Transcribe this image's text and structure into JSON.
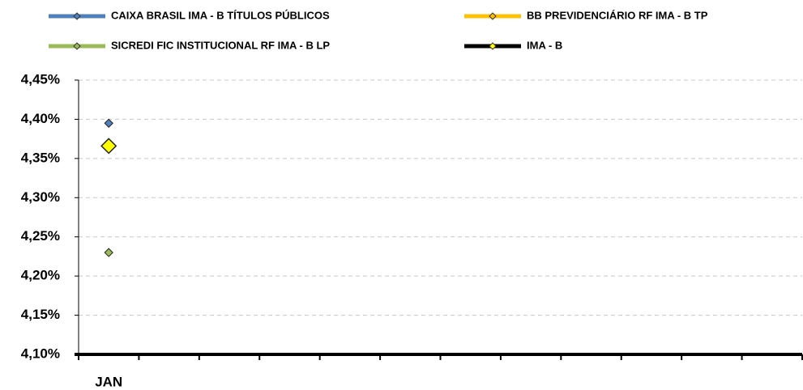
{
  "chart_data": {
    "type": "line",
    "categories": [
      "JAN",
      null,
      null,
      null,
      null,
      null,
      null,
      null,
      null,
      null,
      null,
      null
    ],
    "series": [
      {
        "name": "CAIXA BRASIL IMA - B TÍTULOS PÚBLICOS",
        "color": "#4f81bd",
        "marker_color": "#4f81bd",
        "values": [
          4.395,
          null,
          null,
          null,
          null,
          null,
          null,
          null,
          null,
          null,
          null,
          null
        ]
      },
      {
        "name": "BB PREVIDENCIÁRIO RF IMA - B TP",
        "color": "#ffc000",
        "marker_color": "#ffc000",
        "values": [
          4.366,
          null,
          null,
          null,
          null,
          null,
          null,
          null,
          null,
          null,
          null,
          null
        ]
      },
      {
        "name": "SICREDI FIC INSTITUCIONAL RF IMA - B LP",
        "color": "#9bbb59",
        "marker_color": "#9bbb59",
        "values": [
          4.23,
          null,
          null,
          null,
          null,
          null,
          null,
          null,
          null,
          null,
          null,
          null
        ]
      },
      {
        "name": "IMA - B",
        "color": "#000000",
        "marker_color": "#ffff00",
        "values": [
          4.366,
          null,
          null,
          null,
          null,
          null,
          null,
          null,
          null,
          null,
          null,
          null
        ]
      }
    ],
    "ylim": [
      4.1,
      4.45
    ],
    "yticks": [
      {
        "value": 4.1,
        "label": "4,10%"
      },
      {
        "value": 4.15,
        "label": "4,15%"
      },
      {
        "value": 4.2,
        "label": "4,20%"
      },
      {
        "value": 4.25,
        "label": "4,25%"
      },
      {
        "value": 4.3,
        "label": "4,30%"
      },
      {
        "value": 4.35,
        "label": "4,35%"
      },
      {
        "value": 4.4,
        "label": "4,40%"
      },
      {
        "value": 4.45,
        "label": "4,45%"
      }
    ],
    "grid": true,
    "legend": "top"
  }
}
